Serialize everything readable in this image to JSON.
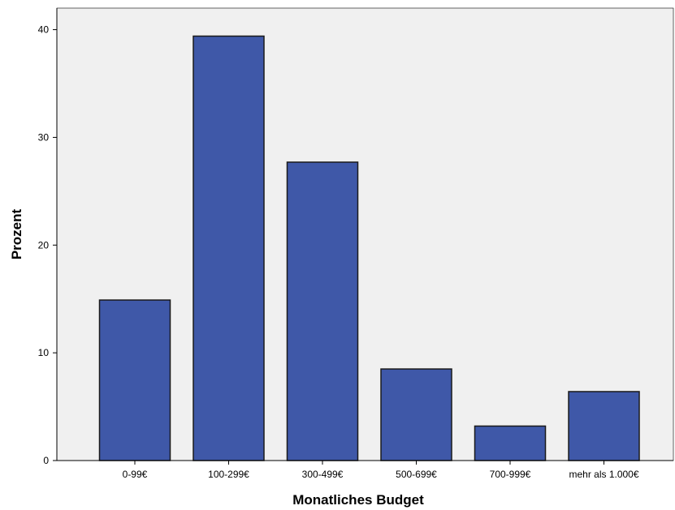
{
  "chart_data": {
    "type": "bar",
    "categories": [
      "0-99€",
      "100-299€",
      "300-499€",
      "500-699€",
      "700-999€",
      "mehr als 1.000€"
    ],
    "values": [
      14.9,
      39.4,
      27.7,
      8.5,
      3.2,
      6.4
    ],
    "xlabel": "Monatliches Budget",
    "ylabel": "Prozent",
    "ylim": [
      0,
      42
    ],
    "yticks": [
      0,
      10,
      20,
      30,
      40
    ],
    "grid": false,
    "colors": {
      "bar": "#3f58a8",
      "bar_edge": "#1a1a1a",
      "plot_bg": "#f0f0f0"
    }
  }
}
